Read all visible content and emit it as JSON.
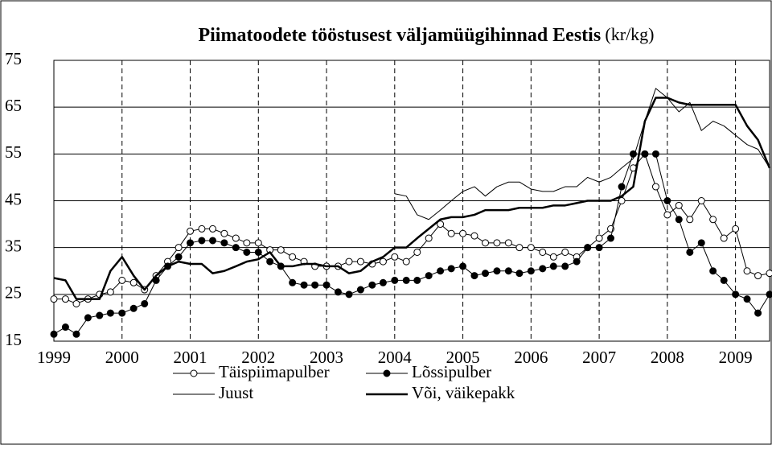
{
  "chart_data": {
    "type": "line",
    "title": "Piimatoodete tööstusest väljamüügihinnad Eestis",
    "subtitle": "(kr/kg)",
    "x": [
      1999,
      1999.17,
      1999.33,
      1999.5,
      1999.67,
      1999.83,
      2000,
      2000.17,
      2000.33,
      2000.5,
      2000.67,
      2000.83,
      2001,
      2001.17,
      2001.33,
      2001.5,
      2001.67,
      2001.83,
      2002,
      2002.17,
      2002.33,
      2002.5,
      2002.67,
      2002.83,
      2003,
      2003.17,
      2003.33,
      2003.5,
      2003.67,
      2003.83,
      2004,
      2004.17,
      2004.33,
      2004.5,
      2004.67,
      2004.83,
      2005,
      2005.17,
      2005.33,
      2005.5,
      2005.67,
      2005.83,
      2006,
      2006.17,
      2006.33,
      2006.5,
      2006.67,
      2006.83,
      2007,
      2007.17,
      2007.33,
      2007.5,
      2007.67,
      2007.83,
      2008,
      2008.17,
      2008.33,
      2008.5,
      2008.67,
      2008.83,
      2009,
      2009.17,
      2009.33,
      2009.5
    ],
    "series": [
      {
        "name": "Täispiimapulber",
        "color": "#000000",
        "marker": "open",
        "width": 1,
        "values": [
          24,
          24,
          23,
          24,
          25,
          25.5,
          28,
          27.5,
          26,
          29,
          32,
          35,
          38.5,
          39,
          39,
          38,
          37,
          36,
          36,
          34.5,
          34.5,
          33,
          32,
          31,
          31,
          31,
          32,
          32,
          31.5,
          32,
          33,
          32,
          34,
          37,
          40,
          38,
          38,
          37.5,
          36,
          36,
          36,
          35,
          35,
          34,
          33,
          34,
          33,
          35,
          37,
          39,
          45,
          52,
          55,
          48,
          42,
          44,
          41,
          45,
          41,
          37,
          39,
          30,
          29,
          29.5
        ]
      },
      {
        "name": "Lõssipulber",
        "color": "#000000",
        "marker": "filled",
        "width": 1,
        "values": [
          16.5,
          18,
          16.5,
          20,
          20.5,
          21,
          21,
          22,
          23,
          28,
          31,
          33,
          36,
          36.5,
          36.5,
          36,
          35,
          34,
          34,
          32,
          31,
          27.5,
          27,
          27,
          27,
          25.5,
          25,
          26,
          27,
          27.5,
          28,
          28,
          28,
          29,
          30,
          30.5,
          31,
          29,
          29.5,
          30,
          30,
          29.5,
          30,
          30.5,
          31,
          31,
          32,
          35,
          35,
          37,
          48,
          55,
          55,
          55,
          45,
          41,
          34,
          36,
          30,
          28,
          25,
          24,
          21,
          25
        ]
      },
      {
        "name": "Juust",
        "color": "#000000",
        "marker": "none",
        "width": 1,
        "values": [
          null,
          null,
          null,
          null,
          null,
          null,
          null,
          null,
          null,
          null,
          null,
          null,
          null,
          null,
          null,
          null,
          null,
          null,
          null,
          null,
          null,
          null,
          null,
          null,
          null,
          null,
          null,
          null,
          null,
          null,
          46.5,
          46,
          42,
          41,
          43,
          45,
          47,
          48,
          46,
          48,
          49,
          49,
          47.5,
          47,
          47,
          48,
          48,
          50,
          49,
          50,
          52,
          54,
          62,
          69,
          67,
          64,
          66,
          60,
          62,
          61,
          59,
          57,
          56,
          52
        ]
      },
      {
        "name": "Või, väikepakk",
        "color": "#000000",
        "marker": "none",
        "width": 2.5,
        "values": [
          28.5,
          28,
          24,
          24,
          24,
          30,
          33,
          29,
          26,
          29,
          31,
          32,
          31.5,
          31.5,
          29.5,
          30,
          31,
          32,
          32.5,
          34,
          31,
          31,
          31.5,
          31.5,
          31,
          31,
          29.5,
          30,
          32,
          33,
          35,
          35,
          37,
          39,
          41,
          41.5,
          41.5,
          42,
          43,
          43,
          43,
          43.5,
          43.5,
          43.5,
          44,
          44,
          44.5,
          45,
          45,
          45,
          46,
          48,
          62,
          67,
          67,
          66,
          65.5,
          65.5,
          65.5,
          65.5,
          65.5,
          61,
          58,
          52
        ]
      }
    ],
    "xlim": [
      1999,
      2009.5
    ],
    "xticks": [
      1999,
      2000,
      2001,
      2002,
      2003,
      2004,
      2005,
      2006,
      2007,
      2008,
      2009
    ],
    "ylim": [
      15,
      75
    ],
    "yticks": [
      15,
      25,
      35,
      45,
      55,
      65,
      75
    ],
    "grid": true
  }
}
